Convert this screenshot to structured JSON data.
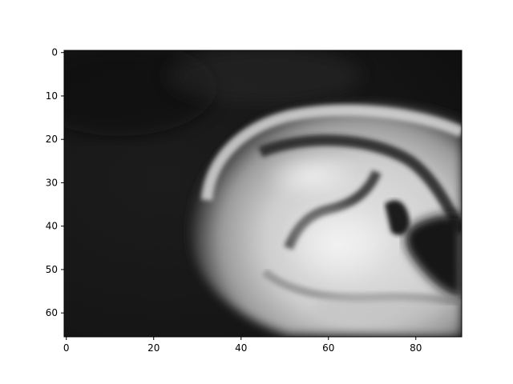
{
  "chart_data": {
    "type": "heatmap",
    "colormap": "gray",
    "subject": "grayscale close-up of a human ear",
    "x": {
      "min": -0.5,
      "max": 90.5,
      "ticks": [
        0,
        20,
        40,
        60,
        80
      ],
      "tick_labels": [
        "0",
        "20",
        "40",
        "60",
        "80"
      ]
    },
    "y": {
      "min": -0.5,
      "max": 65.5,
      "inverted": true,
      "ticks": [
        0,
        10,
        20,
        30,
        40,
        50,
        60
      ],
      "tick_labels": [
        "0",
        "10",
        "20",
        "30",
        "40",
        "50",
        "60"
      ]
    },
    "grid": false,
    "title": "",
    "xlabel": "",
    "ylabel": ""
  }
}
